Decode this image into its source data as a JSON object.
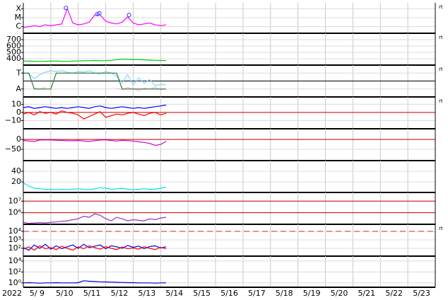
{
  "chart_data": [
    {
      "type": "line",
      "ylim": [
        -6.75,
        -3.33
      ],
      "yticks": [
        {
          "value": -4,
          "label": "X"
        },
        {
          "value": -5,
          "label": "M"
        },
        {
          "value": -6,
          "label": "C"
        }
      ],
      "log": false,
      "xlim": [
        9,
        24
      ],
      "corner_label": "rt",
      "x": [
        9.0,
        9.2,
        9.4,
        9.6,
        9.8,
        10.0,
        10.2,
        10.4,
        10.6,
        10.8,
        11.0,
        11.2,
        11.4,
        11.6,
        11.8,
        12.0,
        12.2,
        12.4,
        12.6,
        12.8,
        13.0,
        13.2,
        13.4,
        13.6,
        13.8,
        14.0,
        14.2
      ],
      "series": [
        {
          "color": "#ff00ff",
          "values": [
            -6.1,
            -6.0,
            -5.9,
            -6.0,
            -5.8,
            -5.9,
            -5.8,
            -5.7,
            -4.0,
            -5.6,
            -5.8,
            -5.7,
            -5.5,
            -4.7,
            -4.7,
            -5.4,
            -5.6,
            -5.7,
            -5.5,
            -4.9,
            -5.6,
            -5.8,
            -5.7,
            -5.6,
            -5.8,
            -5.9,
            -5.8
          ]
        }
      ],
      "markers": {
        "color": "#5050ff",
        "x": [
          10.55,
          11.7,
          11.77,
          12.85
        ],
        "values": [
          -3.9,
          -4.6,
          -4.5,
          -4.7
        ]
      }
    },
    {
      "type": "line",
      "ylim": [
        300,
        800
      ],
      "yticks": [
        700,
        600,
        500,
        400
      ],
      "log": false,
      "xlim": [
        9,
        24
      ],
      "corner_label": "rt",
      "x": [
        9.0,
        9.2,
        9.4,
        9.6,
        9.8,
        10.0,
        10.2,
        10.4,
        10.6,
        10.8,
        11.0,
        11.2,
        11.4,
        11.6,
        11.8,
        12.0,
        12.2,
        12.4,
        12.6,
        12.8,
        13.0,
        13.2,
        13.4,
        13.6,
        13.8,
        14.0,
        14.2
      ],
      "series": [
        {
          "color": "#00cc00",
          "values": [
            365,
            362,
            360,
            358,
            360,
            362,
            365,
            360,
            358,
            362,
            365,
            368,
            370,
            372,
            368,
            370,
            375,
            385,
            392,
            390,
            388,
            385,
            382,
            378,
            375,
            372,
            370
          ]
        }
      ]
    },
    {
      "type": "line",
      "ylim": [
        -2,
        2
      ],
      "yticks": [
        {
          "value": 1,
          "label": "T"
        },
        {
          "value": -1,
          "label": "A"
        }
      ],
      "log": false,
      "xlim": [
        9,
        24
      ],
      "corner_label": "rt",
      "hlines": {
        "color": "#000000",
        "dashed": false,
        "values": [
          0
        ]
      },
      "x": [
        9.0,
        9.2,
        9.4,
        9.6,
        9.8,
        10.0,
        10.2,
        10.4,
        10.6,
        10.8,
        11.0,
        11.2,
        11.4,
        11.6,
        11.8,
        12.0,
        12.2,
        12.4,
        12.6,
        12.8,
        13.0,
        13.2,
        13.4,
        13.6,
        13.8,
        14.0,
        14.2
      ],
      "series": [
        {
          "color": "#80d8ff",
          "values": [
            1.0,
            0.9,
            0.3,
            0.8,
            1.1,
            1.3,
            1.2,
            1.3,
            1.1,
            1.0,
            1.2,
            1.1,
            1.3,
            1.0,
            0.9,
            1.2,
            1.0,
            0.6,
            -0.2,
            0.8,
            -0.5,
            0.4,
            -0.3,
            0.2,
            -0.6,
            -0.4,
            -0.5
          ]
        },
        {
          "color": "#ffb0e0",
          "values": [
            null,
            null,
            -0.9,
            -1.0,
            -0.8,
            null,
            null,
            null,
            null,
            null,
            null,
            null,
            null,
            null,
            null,
            null,
            null,
            -0.9,
            -1.1,
            -0.8,
            -1.0,
            -1.2,
            -0.9,
            -1.0,
            -0.8,
            -1.1,
            -1.0
          ]
        },
        {
          "color": "#2e7d32",
          "values": [
            1,
            1,
            -1,
            -1,
            -1,
            -1,
            1,
            1,
            1,
            1,
            1,
            1,
            1,
            1,
            1,
            1,
            1,
            1,
            -1,
            -1,
            -1,
            -1,
            -1,
            -1,
            -1,
            -1,
            -1
          ]
        }
      ]
    },
    {
      "type": "line",
      "ylim": [
        -20,
        19
      ],
      "yticks": [
        10,
        0,
        {
          "value": -10,
          "label": "−10"
        }
      ],
      "log": false,
      "xlim": [
        9,
        24
      ],
      "corner_label": "rt",
      "hlines": {
        "color": "#cc0000",
        "dashed": false,
        "values": [
          0
        ]
      },
      "x": [
        9.0,
        9.2,
        9.4,
        9.6,
        9.8,
        10.0,
        10.2,
        10.4,
        10.6,
        10.8,
        11.0,
        11.2,
        11.4,
        11.6,
        11.8,
        12.0,
        12.2,
        12.4,
        12.6,
        12.8,
        13.0,
        13.2,
        13.4,
        13.6,
        13.8,
        14.0,
        14.2
      ],
      "series": [
        {
          "color": "#0000ff",
          "values": [
            6,
            7,
            5,
            6,
            7,
            6,
            5,
            6,
            5,
            6,
            7,
            6,
            5,
            7,
            8,
            6,
            5,
            6,
            7,
            6,
            5,
            6,
            5,
            6,
            7,
            8,
            9
          ]
        },
        {
          "color": "#ff0000",
          "values": [
            -2,
            0,
            -3,
            1,
            -1,
            0,
            -2,
            2,
            0,
            -1,
            -3,
            -8,
            -5,
            -2,
            1,
            -6,
            -4,
            -2,
            -3,
            -1,
            0,
            -2,
            -4,
            -1,
            0,
            -3,
            -1
          ]
        }
      ]
    },
    {
      "type": "line",
      "ylim": [
        -107,
        54
      ],
      "yticks": [
        0,
        {
          "value": -50,
          "label": "−50"
        }
      ],
      "log": false,
      "xlim": [
        9,
        24
      ],
      "hlines": {
        "color": "#cc0000",
        "dashed": false,
        "values": [
          0
        ]
      },
      "x": [
        9.0,
        9.2,
        9.4,
        9.6,
        9.8,
        10.0,
        10.2,
        10.4,
        10.6,
        10.8,
        11.0,
        11.2,
        11.4,
        11.6,
        11.8,
        12.0,
        12.2,
        12.4,
        12.6,
        12.8,
        13.0,
        13.2,
        13.4,
        13.6,
        13.8,
        14.0,
        14.2
      ],
      "series": [
        {
          "color": "#cc00cc",
          "values": [
            -5,
            -8,
            -10,
            -3,
            -2,
            -3,
            -4,
            -5,
            -6,
            -7,
            -5,
            -8,
            -10,
            -6,
            -3,
            -2,
            -5,
            -8,
            -4,
            -6,
            -8,
            -12,
            -15,
            -20,
            -30,
            -25,
            -10
          ]
        }
      ]
    },
    {
      "type": "line",
      "ylim": [
        0,
        60
      ],
      "yticks": [
        40,
        20
      ],
      "log": false,
      "xlim": [
        9,
        24
      ],
      "x": [
        9.0,
        9.2,
        9.4,
        9.6,
        9.8,
        10.0,
        10.2,
        10.4,
        10.6,
        10.8,
        11.0,
        11.2,
        11.4,
        11.6,
        11.8,
        12.0,
        12.2,
        12.4,
        12.6,
        12.8,
        13.0,
        13.2,
        13.4,
        13.6,
        13.8,
        14.0,
        14.2
      ],
      "series": [
        {
          "color": "#00e0e0",
          "values": [
            18,
            12,
            8,
            7,
            6,
            6,
            5,
            6,
            5,
            6,
            7,
            6,
            5,
            7,
            9,
            8,
            6,
            7,
            8,
            6,
            5,
            6,
            7,
            6,
            6,
            8,
            10
          ]
        }
      ]
    },
    {
      "type": "line",
      "ylim": [
        100000,
        56000000
      ],
      "yticks": [
        {
          "value": 10000000,
          "label": "10⁷"
        },
        {
          "value": 1000000,
          "label": "10⁶"
        }
      ],
      "log": true,
      "xlim": [
        9,
        24
      ],
      "hlines": {
        "color": "#cc0000",
        "dashed": false,
        "values": [
          10000000,
          1000000
        ]
      },
      "x": [
        9.0,
        9.2,
        9.4,
        9.6,
        9.8,
        10.0,
        10.2,
        10.4,
        10.6,
        10.8,
        11.0,
        11.2,
        11.4,
        11.6,
        11.8,
        12.0,
        12.2,
        12.4,
        12.6,
        12.8,
        13.0,
        13.2,
        13.4,
        13.6,
        13.8,
        14.0,
        14.2
      ],
      "series": [
        {
          "color": "#9030c0",
          "values": [
            150000,
            120000,
            130000,
            140000,
            130000,
            150000,
            160000,
            180000,
            200000,
            250000,
            300000,
            500000,
            400000,
            800000,
            600000,
            300000,
            200000,
            400000,
            300000,
            200000,
            250000,
            220000,
            200000,
            300000,
            250000,
            350000,
            400000
          ]
        }
      ]
    },
    {
      "type": "line",
      "ylim": [
        12,
        68000
      ],
      "yticks": [
        {
          "value": 10000,
          "label": "10⁴"
        },
        {
          "value": 1000,
          "label": "10³"
        },
        {
          "value": 100,
          "label": "10²"
        }
      ],
      "log": true,
      "xlim": [
        9,
        24
      ],
      "corner_label": "rt",
      "hlines": {
        "color": "#dd2222",
        "dashed": true,
        "values": [
          10000
        ]
      },
      "x": [
        9.0,
        9.2,
        9.4,
        9.6,
        9.8,
        10.0,
        10.2,
        10.4,
        10.6,
        10.8,
        11.0,
        11.2,
        11.4,
        11.6,
        11.8,
        12.0,
        12.2,
        12.4,
        12.6,
        12.8,
        13.0,
        13.2,
        13.4,
        13.6,
        13.8,
        14.0,
        14.2
      ],
      "series": [
        {
          "color": "#0000ff",
          "values": [
            120,
            60,
            250,
            100,
            300,
            80,
            200,
            90,
            150,
            250,
            100,
            300,
            120,
            180,
            250,
            90,
            200,
            150,
            100,
            220,
            130,
            180,
            90,
            160,
            200,
            110,
            150
          ]
        },
        {
          "color": "#ff0000",
          "values": [
            80,
            150,
            60,
            200,
            90,
            120,
            70,
            180,
            100,
            60,
            150,
            90,
            200,
            120,
            80,
            160,
            100,
            70,
            140,
            90,
            110,
            80,
            150,
            100,
            70,
            130,
            90
          ]
        }
      ]
    },
    {
      "type": "line",
      "ylim": [
        0.16,
        79000
      ],
      "yticks": [
        {
          "value": 10000,
          "label": "10⁴"
        },
        {
          "value": 100,
          "label": "10²"
        },
        {
          "value": 1,
          "label": "10⁰"
        }
      ],
      "log": true,
      "xlim": [
        9,
        24
      ],
      "x": [
        9.0,
        9.2,
        9.4,
        9.6,
        9.8,
        10.0,
        10.2,
        10.4,
        10.6,
        10.8,
        11.0,
        11.2,
        11.4,
        11.6,
        11.8,
        12.0,
        12.2,
        12.4,
        12.6,
        12.8,
        13.0,
        13.2,
        13.4,
        13.6,
        13.8,
        14.0,
        14.2
      ],
      "series": [
        {
          "color": "#0000cc",
          "values": [
            1.0,
            1.1,
            1.0,
            0.9,
            1.0,
            1.0,
            1.1,
            1.0,
            1.0,
            1.0,
            1.1,
            2.5,
            2.0,
            1.8,
            1.6,
            1.5,
            1.4,
            1.3,
            1.2,
            1.1,
            1.1,
            1.0,
            1.0,
            1.0,
            0.9,
            1.0,
            1.0
          ]
        }
      ],
      "xlabel": "2022",
      "xgrid": [
        9,
        10,
        11,
        12,
        13,
        14,
        15,
        16,
        17,
        18,
        19,
        20,
        21,
        22,
        23,
        24
      ],
      "xticks": [
        {
          "value": 9.5,
          "label": "5/ 9"
        },
        {
          "value": 10.5,
          "label": "5/10"
        },
        {
          "value": 11.5,
          "label": "5/11"
        },
        {
          "value": 12.5,
          "label": "5/12"
        },
        {
          "value": 13.5,
          "label": "5/13"
        },
        {
          "value": 14.5,
          "label": "5/14"
        },
        {
          "value": 15.5,
          "label": "5/15"
        },
        {
          "value": 16.5,
          "label": "5/16"
        },
        {
          "value": 17.5,
          "label": "5/17"
        },
        {
          "value": 18.5,
          "label": "5/18"
        },
        {
          "value": 19.5,
          "label": "5/19"
        },
        {
          "value": 20.5,
          "label": "5/20"
        },
        {
          "value": 21.5,
          "label": "5/21"
        },
        {
          "value": 22.5,
          "label": "5/22"
        },
        {
          "value": 23.5,
          "label": "5/23"
        }
      ]
    }
  ]
}
